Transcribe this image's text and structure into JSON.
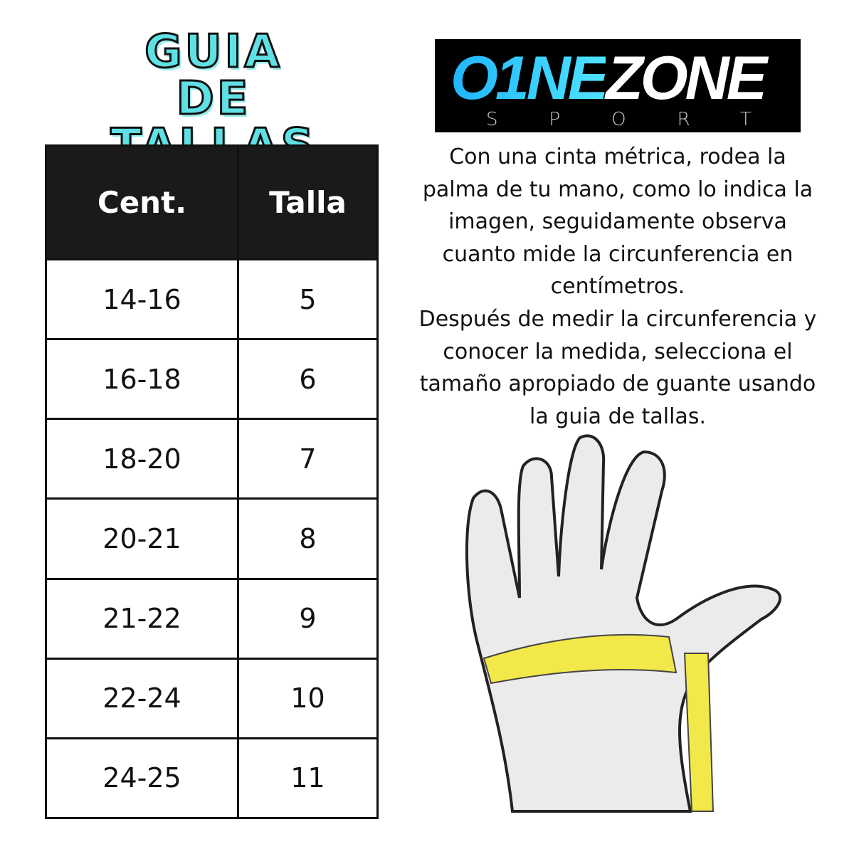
{
  "title": {
    "line1": "GUIA DE",
    "line2": "TALLAS",
    "color": "#5fe0e4"
  },
  "logo": {
    "part1": "O1NE",
    "part2": "ZONE",
    "tagline": "SPORT"
  },
  "table": {
    "headers": [
      "Cent.",
      "Talla"
    ],
    "rows": [
      [
        "14-16",
        "5"
      ],
      [
        "16-18",
        "6"
      ],
      [
        "18-20",
        "7"
      ],
      [
        "20-21",
        "8"
      ],
      [
        "21-22",
        "9"
      ],
      [
        "22-24",
        "10"
      ],
      [
        "24-25",
        "11"
      ]
    ]
  },
  "instructions": {
    "p1": "Con una cinta métrica, rodea la palma de tu mano, como lo indica la imagen, seguidamente observa cuanto mide la circunferencia en centímetros.",
    "p2": "Después de medir la circunferencia y conocer la medida, selecciona el tamaño apropiado de guante usando la guia de tallas."
  },
  "illustration": {
    "icon": "hand-with-measuring-tape-icon",
    "tape_color": "#f2e84a"
  }
}
